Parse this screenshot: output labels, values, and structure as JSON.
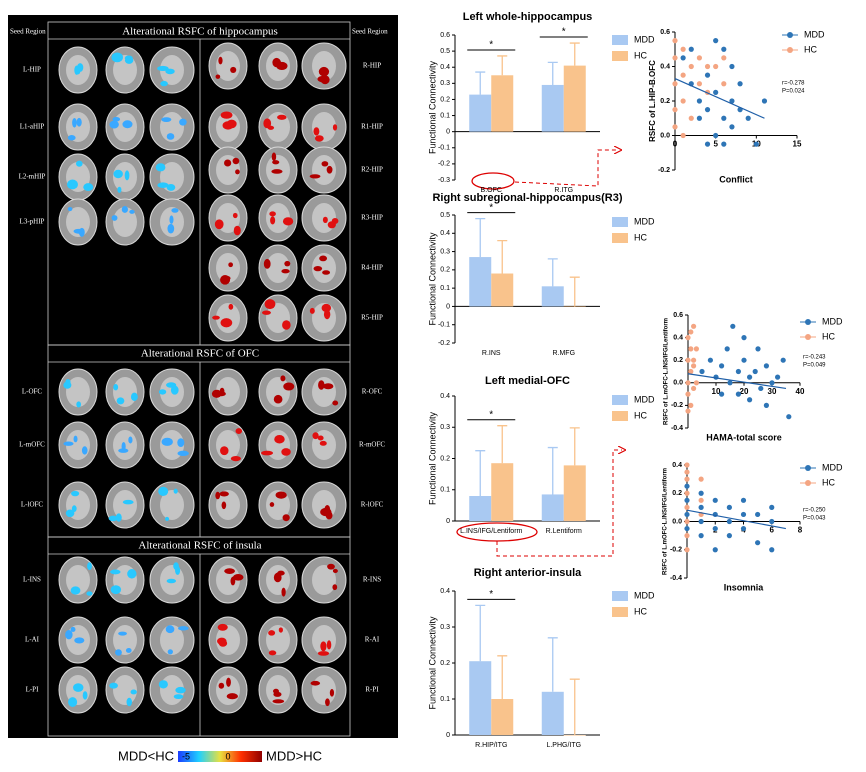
{
  "brain_panel": {
    "seed_label_left": "Seed Region",
    "seed_label_right": "Seed Region",
    "sections": [
      {
        "title": "Alterational RSFC of hippocampus",
        "left": [
          "L-HIP",
          "L1-aHIP",
          "L2-mHIP",
          "L3-pHIP"
        ],
        "right": [
          "R-HIP",
          "R1-HIP",
          "R2-HIP",
          "R3-HIP",
          "R4-HIP",
          "R5-HIP"
        ]
      },
      {
        "title": "Alterational RSFC of OFC",
        "left": [
          "L-OFC",
          "L-mOFC",
          "L-lOFC"
        ],
        "right": [
          "R-OFC",
          "R-mOFC",
          "R-lOFC"
        ]
      },
      {
        "title": "Alterational RSFC of insula",
        "left": [
          "L-INS",
          "L-AI",
          "L-PI"
        ],
        "right": [
          "R-INS",
          "R-AI",
          "R-PI"
        ]
      }
    ],
    "colorbar": {
      "min_label": "MDD<HC",
      "max_label": "MDD>HC",
      "range": [
        -5,
        5
      ],
      "ticks": [
        -5,
        0
      ]
    }
  },
  "chart_data": [
    {
      "type": "bar",
      "title": "Left whole-hippocampus",
      "ylabel": "Functional Connectivity",
      "categories": [
        "B.OFC",
        "R.ITG"
      ],
      "significance": [
        "*",
        "*"
      ],
      "series": [
        {
          "name": "MDD",
          "color": "#a9c9f2",
          "values": [
            0.23,
            0.29
          ],
          "errors": [
            0.14,
            0.14
          ]
        },
        {
          "name": "HC",
          "color": "#f9c38c",
          "values": [
            0.35,
            0.41
          ],
          "errors": [
            0.12,
            0.14
          ]
        }
      ],
      "ylim": [
        -0.3,
        0.6
      ],
      "yticks": [
        -0.3,
        -0.2,
        -0.1,
        0,
        0.1,
        0.2,
        0.3,
        0.4,
        0.5,
        0.6
      ]
    },
    {
      "type": "bar",
      "title": "Right subregional-hippocampus(R3)",
      "ylabel": "Functional Connectivity",
      "categories": [
        "R.INS",
        "R.MFG"
      ],
      "significance": [
        "*",
        null
      ],
      "series": [
        {
          "name": "MDD",
          "color": "#a9c9f2",
          "values": [
            0.27,
            0.11
          ],
          "errors": [
            0.21,
            0.15
          ]
        },
        {
          "name": "HC",
          "color": "#f9c38c",
          "values": [
            0.18,
            0.0
          ],
          "errors": [
            0.18,
            0.16
          ]
        }
      ],
      "ylim": [
        -0.2,
        0.5
      ],
      "yticks": [
        -0.2,
        -0.1,
        0,
        0.1,
        0.2,
        0.3,
        0.4,
        0.5
      ]
    },
    {
      "type": "bar",
      "title": "Left medial-OFC",
      "ylabel": "Functional Connectivity",
      "categories": [
        "L.INS/IFG/Lentiform",
        "R.Lentiform"
      ],
      "significance": [
        "*",
        null
      ],
      "series": [
        {
          "name": "MDD",
          "color": "#a9c9f2",
          "values": [
            0.08,
            0.085
          ],
          "errors": [
            0.145,
            0.15
          ]
        },
        {
          "name": "HC",
          "color": "#f9c38c",
          "values": [
            0.185,
            0.178
          ],
          "errors": [
            0.12,
            0.12
          ]
        }
      ],
      "ylim": [
        0,
        0.4
      ],
      "yticks": [
        0,
        0.1,
        0.2,
        0.3,
        0.4
      ]
    },
    {
      "type": "bar",
      "title": "Right anterior-insula",
      "ylabel": "Functional Connectivity",
      "categories": [
        "R.HIP/ITG",
        "L.PHG/ITG"
      ],
      "significance": [
        "*",
        null
      ],
      "series": [
        {
          "name": "MDD",
          "color": "#a9c9f2",
          "values": [
            0.205,
            0.12
          ],
          "errors": [
            0.155,
            0.15
          ]
        },
        {
          "name": "HC",
          "color": "#f9c38c",
          "values": [
            0.1,
            0.0
          ],
          "errors": [
            0.12,
            0.155
          ]
        }
      ],
      "ylim": [
        0,
        0.4
      ],
      "yticks": [
        0,
        0.1,
        0.2,
        0.3,
        0.4
      ]
    },
    {
      "type": "scatter",
      "xlabel": "Conflict",
      "ylabel": "RSFC of L.HIP-B.OFC",
      "annotations": [
        "r=-0.278",
        "P=0.024"
      ],
      "xlim": [
        0,
        15
      ],
      "xticks": [
        0,
        5,
        10,
        15
      ],
      "ylim": [
        -0.2,
        0.6
      ],
      "yticks": [
        -0.2,
        {
          "value": 0,
          "label": "0.0"
        },
        0.2,
        0.4,
        0.6
      ],
      "series": [
        {
          "name": "MDD",
          "color": "#2e75b6",
          "x": [
            1,
            2,
            3,
            3,
            4,
            4,
            5,
            5,
            5,
            6,
            6,
            6,
            7,
            7,
            8,
            8,
            9,
            10,
            11,
            2,
            4,
            7
          ],
          "y": [
            0.45,
            0.3,
            0.2,
            0.1,
            0.35,
            0.15,
            0.55,
            0.0,
            0.25,
            0.5,
            0.1,
            -0.05,
            0.2,
            0.05,
            0.15,
            0.3,
            0.1,
            -0.05,
            0.2,
            0.5,
            -0.05,
            0.4
          ]
        },
        {
          "name": "HC",
          "color": "#f4a582",
          "x": [
            0,
            0,
            0,
            0,
            1,
            1,
            1,
            2,
            2,
            3,
            3,
            4,
            4,
            5,
            6,
            6,
            0,
            1
          ],
          "y": [
            0.45,
            0.3,
            0.15,
            0.05,
            0.5,
            0.35,
            0.2,
            0.4,
            0.1,
            0.45,
            0.3,
            0.4,
            0.25,
            0.4,
            0.45,
            0.3,
            0.55,
            0.0
          ]
        }
      ],
      "fit": {
        "x": [
          0,
          11
        ],
        "y": [
          0.33,
          0.1
        ]
      }
    },
    {
      "type": "scatter",
      "xlabel": "HAMA-total score",
      "ylabel": "RSFC of L.mOFC-L.INS/IFG/Lentiform",
      "annotations": [
        "r=-0.243",
        "P=0.049"
      ],
      "xlim": [
        0,
        40
      ],
      "xticks": [
        10,
        20,
        30,
        40
      ],
      "ylim": [
        -0.4,
        0.6
      ],
      "yticks": [
        -0.4,
        -0.2,
        {
          "value": 0,
          "label": "0.0"
        },
        0.2,
        0.4,
        0.6
      ],
      "series": [
        {
          "name": "MDD",
          "color": "#2e75b6",
          "x": [
            5,
            8,
            10,
            12,
            14,
            15,
            16,
            18,
            18,
            20,
            22,
            22,
            24,
            25,
            26,
            28,
            28,
            30,
            32,
            34,
            36,
            20,
            12
          ],
          "y": [
            0.1,
            0.2,
            0.05,
            0.15,
            0.3,
            0.0,
            0.5,
            0.1,
            -0.1,
            0.2,
            0.05,
            -0.15,
            0.1,
            0.3,
            -0.05,
            0.15,
            -0.2,
            0.0,
            0.05,
            0.2,
            -0.3,
            0.4,
            -0.1
          ]
        },
        {
          "name": "HC",
          "color": "#f4a582",
          "x": [
            0,
            0,
            0,
            0,
            1,
            1,
            1,
            2,
            2,
            2,
            3,
            3,
            1,
            0,
            2
          ],
          "y": [
            0.4,
            0.2,
            0.0,
            -0.1,
            0.3,
            0.1,
            -0.2,
            0.5,
            0.2,
            -0.05,
            0.3,
            0.0,
            0.45,
            -0.25,
            0.15
          ]
        }
      ],
      "fit": {
        "x": [
          0,
          35
        ],
        "y": [
          0.08,
          -0.05
        ]
      }
    },
    {
      "type": "scatter",
      "xlabel": "Insomnia",
      "ylabel": "RSFC of L.mOFC-L.INS/IFG/Lentiform",
      "annotations": [
        "r=-0.250",
        "P=0.043"
      ],
      "xlim": [
        0,
        8
      ],
      "xticks": [
        2,
        4,
        6,
        8
      ],
      "ylim": [
        -0.4,
        0.4
      ],
      "yticks": [
        -0.4,
        -0.2,
        {
          "value": 0,
          "label": "0.0"
        },
        0.2,
        0.4
      ],
      "series": [
        {
          "name": "MDD",
          "color": "#2e75b6",
          "x": [
            0,
            0,
            0,
            1,
            1,
            1,
            1,
            2,
            2,
            2,
            2,
            3,
            3,
            3,
            4,
            4,
            4,
            5,
            5,
            6,
            6,
            6,
            0
          ],
          "y": [
            0.15,
            0.05,
            -0.05,
            0.2,
            0.1,
            0.0,
            -0.1,
            0.15,
            0.05,
            -0.05,
            -0.2,
            0.1,
            0.0,
            -0.1,
            0.15,
            0.05,
            -0.05,
            0.05,
            -0.15,
            0.1,
            0.0,
            -0.2,
            0.25
          ]
        },
        {
          "name": "HC",
          "color": "#f4a582",
          "x": [
            0,
            0,
            0,
            0,
            0,
            0,
            0,
            1,
            1,
            1,
            0
          ],
          "y": [
            0.35,
            0.3,
            0.2,
            0.1,
            0.0,
            -0.1,
            -0.2,
            0.3,
            0.15,
            0.05,
            0.4
          ]
        }
      ],
      "fit": {
        "x": [
          0,
          7
        ],
        "y": [
          0.08,
          -0.05
        ]
      }
    }
  ]
}
